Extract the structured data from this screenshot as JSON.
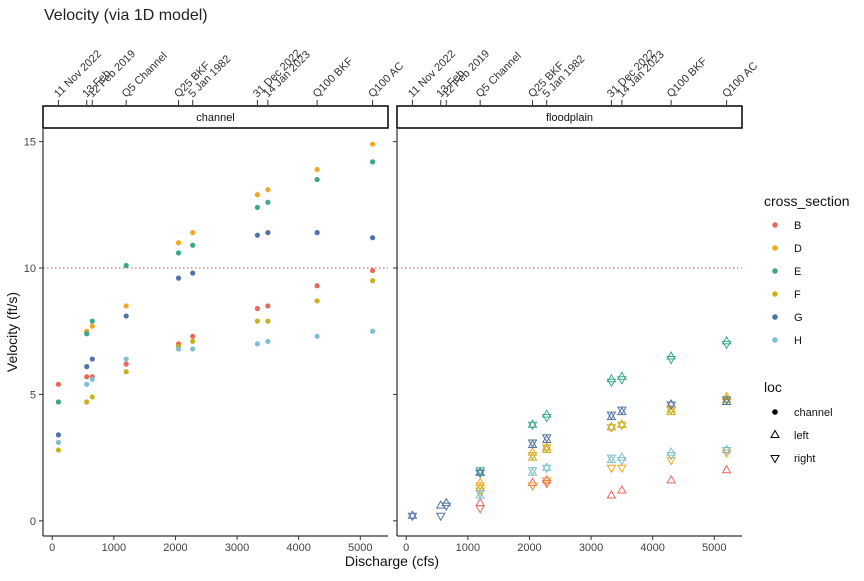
{
  "chart_data": {
    "type": "scatter",
    "title": "Velocity (via 1D model)",
    "xlabel": "Discharge (cfs)",
    "ylabel": "Velocity (ft/s)",
    "xlim": [
      -150,
      5450
    ],
    "ylim": [
      -0.6,
      15.5
    ],
    "x_ticks": [
      0,
      1000,
      2000,
      3000,
      4000,
      5000
    ],
    "y_ticks": [
      0,
      5,
      10,
      15
    ],
    "reference_line": {
      "y": 10,
      "style": "dotted",
      "color": "#e0503c"
    },
    "panels": [
      "channel",
      "floodplain"
    ],
    "top_annotations": [
      {
        "label": "11 Nov 2022",
        "x": 100
      },
      {
        "label": "13 Feb",
        "x": 560
      },
      {
        "label": "12 Feb 2019",
        "x": 650
      },
      {
        "label": "Q5 Channel",
        "x": 1200
      },
      {
        "label": "Q25 BKF",
        "x": 2050
      },
      {
        "label": "5 Jan 1982",
        "x": 2280
      },
      {
        "label": "31 Dec 2022",
        "x": 3330
      },
      {
        "label": "14 Jan 2023",
        "x": 3500
      },
      {
        "label": "Q100 BKF",
        "x": 4300
      },
      {
        "label": "Q100 AC",
        "x": 5200
      }
    ],
    "legend": {
      "position": "right",
      "color_title": "cross_section",
      "colors": [
        {
          "name": "B",
          "color": "#e8695b"
        },
        {
          "name": "D",
          "color": "#f5a623"
        },
        {
          "name": "E",
          "color": "#3aa987"
        },
        {
          "name": "F",
          "color": "#c9b01e"
        },
        {
          "name": "G",
          "color": "#4f73a6"
        },
        {
          "name": "H",
          "color": "#7fbfcf"
        }
      ],
      "shape_title": "loc",
      "shapes": [
        {
          "name": "channel",
          "shape": "circle"
        },
        {
          "name": "left",
          "shape": "triangle-up"
        },
        {
          "name": "right",
          "shape": "triangle-down"
        }
      ]
    },
    "x": [
      100,
      560,
      650,
      1200,
      2050,
      2280,
      3330,
      3500,
      4300,
      5200
    ],
    "series": [
      {
        "panel": "channel",
        "loc": "channel",
        "cross_section": "B",
        "y": [
          5.4,
          5.7,
          5.7,
          6.2,
          7.0,
          7.3,
          8.4,
          8.5,
          9.3,
          9.9
        ]
      },
      {
        "panel": "channel",
        "loc": "channel",
        "cross_section": "D",
        "y": [
          4.7,
          7.5,
          7.7,
          8.5,
          11.0,
          11.4,
          12.9,
          13.1,
          13.9,
          14.9
        ]
      },
      {
        "panel": "channel",
        "loc": "channel",
        "cross_section": "E",
        "y": [
          4.7,
          7.4,
          7.9,
          10.1,
          10.6,
          10.9,
          12.4,
          12.6,
          13.5,
          14.2
        ]
      },
      {
        "panel": "channel",
        "loc": "channel",
        "cross_section": "F",
        "y": [
          2.8,
          4.7,
          4.9,
          5.9,
          6.9,
          7.1,
          7.9,
          7.9,
          8.7,
          9.5
        ]
      },
      {
        "panel": "channel",
        "loc": "channel",
        "cross_section": "G",
        "y": [
          3.4,
          6.1,
          6.4,
          8.1,
          9.6,
          9.8,
          11.3,
          11.4,
          11.4,
          11.2
        ]
      },
      {
        "panel": "channel",
        "loc": "channel",
        "cross_section": "H",
        "y": [
          3.1,
          5.4,
          5.6,
          6.4,
          6.8,
          6.8,
          7.0,
          7.1,
          7.3,
          7.5
        ]
      },
      {
        "panel": "floodplain",
        "loc": "left",
        "cross_section": "B",
        "y": [
          null,
          null,
          null,
          0.7,
          1.5,
          1.6,
          1.0,
          1.2,
          1.6,
          2.0
        ]
      },
      {
        "panel": "floodplain",
        "loc": "left",
        "cross_section": "D",
        "y": [
          null,
          null,
          null,
          1.5,
          2.7,
          2.9,
          3.7,
          3.8,
          4.4,
          4.9
        ]
      },
      {
        "panel": "floodplain",
        "loc": "left",
        "cross_section": "E",
        "y": [
          null,
          null,
          null,
          1.9,
          3.8,
          4.2,
          5.6,
          5.7,
          6.5,
          7.1
        ]
      },
      {
        "panel": "floodplain",
        "loc": "left",
        "cross_section": "F",
        "y": [
          null,
          null,
          null,
          1.3,
          2.5,
          2.8,
          3.7,
          3.8,
          4.3,
          4.8
        ]
      },
      {
        "panel": "floodplain",
        "loc": "left",
        "cross_section": "G",
        "y": [
          0.2,
          0.6,
          0.7,
          1.9,
          3.0,
          3.2,
          4.1,
          4.3,
          4.6,
          4.7
        ]
      },
      {
        "panel": "floodplain",
        "loc": "left",
        "cross_section": "H",
        "y": [
          null,
          null,
          null,
          1.0,
          1.9,
          2.1,
          2.4,
          2.5,
          2.7,
          2.8
        ]
      },
      {
        "panel": "floodplain",
        "loc": "right",
        "cross_section": "B",
        "y": [
          null,
          null,
          null,
          0.5,
          1.4,
          1.5,
          null,
          null,
          null,
          null
        ]
      },
      {
        "panel": "floodplain",
        "loc": "right",
        "cross_section": "D",
        "y": [
          null,
          null,
          null,
          1.4,
          1.4,
          1.6,
          2.1,
          2.1,
          2.4,
          2.7
        ]
      },
      {
        "panel": "floodplain",
        "loc": "right",
        "cross_section": "E",
        "y": [
          null,
          null,
          null,
          2.0,
          3.8,
          4.1,
          5.5,
          5.6,
          6.4,
          7.0
        ]
      },
      {
        "panel": "floodplain",
        "loc": "right",
        "cross_section": "F",
        "y": [
          null,
          null,
          null,
          1.2,
          2.6,
          2.9,
          3.7,
          3.8,
          4.4,
          4.8
        ]
      },
      {
        "panel": "floodplain",
        "loc": "right",
        "cross_section": "G",
        "y": [
          0.2,
          0.2,
          0.6,
          1.9,
          3.1,
          3.3,
          4.2,
          4.4,
          4.6,
          4.8
        ]
      },
      {
        "panel": "floodplain",
        "loc": "right",
        "cross_section": "H",
        "y": [
          null,
          null,
          null,
          1.1,
          2.0,
          2.1,
          2.5,
          2.4,
          2.6,
          2.8
        ]
      }
    ]
  }
}
